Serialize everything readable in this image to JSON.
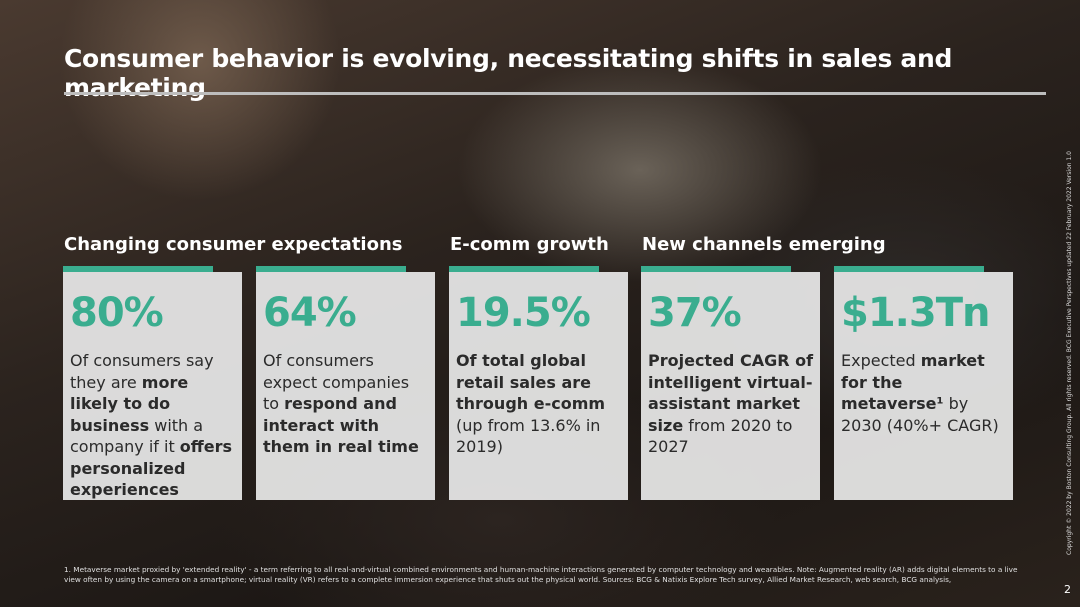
{
  "title": "Consumer behavior is evolving, necessitating shifts in sales and marketing",
  "sections": [
    "Changing consumer expectations",
    "E-comm growth",
    "New channels emerging"
  ],
  "cards": [
    {
      "stat": "80%",
      "desc": [
        {
          "t": "Of consumers say they are ",
          "b": false
        },
        {
          "t": "more likely to do business",
          "b": true
        },
        {
          "t": " with a company if it ",
          "b": false
        },
        {
          "t": "offers personalized experiences",
          "b": true
        }
      ]
    },
    {
      "stat": "64%",
      "desc": [
        {
          "t": "Of consumers expect companies to ",
          "b": false
        },
        {
          "t": "respond and interact with them in real time",
          "b": true
        }
      ]
    },
    {
      "stat": "19.5%",
      "desc": [
        {
          "t": "Of total global retail sales are through e-comm",
          "b": true
        },
        {
          "t": " (up from 13.6% in 2019)",
          "b": false
        }
      ]
    },
    {
      "stat": "37%",
      "desc": [
        {
          "t": "Projected CAGR of intelligent virtual-assistant market size",
          "b": true
        },
        {
          "t": " from 2020 to 2027",
          "b": false
        }
      ]
    },
    {
      "stat": "$1.3Tn",
      "desc": [
        {
          "t": "Expected ",
          "b": false
        },
        {
          "t": "market for the metaverse¹",
          "b": true
        },
        {
          "t": " by 2030 (40%+ CAGR)",
          "b": false
        }
      ]
    }
  ],
  "footnote": "1. Metaverse market proxied by 'extended reality' - a term referring to all real-and-virtual combined environments and human-machine interactions generated by computer technology and wearables. Note: Augmented reality (AR) adds digital elements to a live view often by using the camera on a smartphone; virtual reality (VR) refers to a complete immersion experience that shuts out the physical world. Sources: BCG & Natixis Explore Tech survey, Allied Market Research, web search, BCG analysis,",
  "copyright": "Copyright © 2022 by Boston Consulting Group. All rights reserved. BCG Executive Perspectives updated 22 February 2022 Version 1.0",
  "page_number": "2",
  "accent_color": "#3aad8f"
}
